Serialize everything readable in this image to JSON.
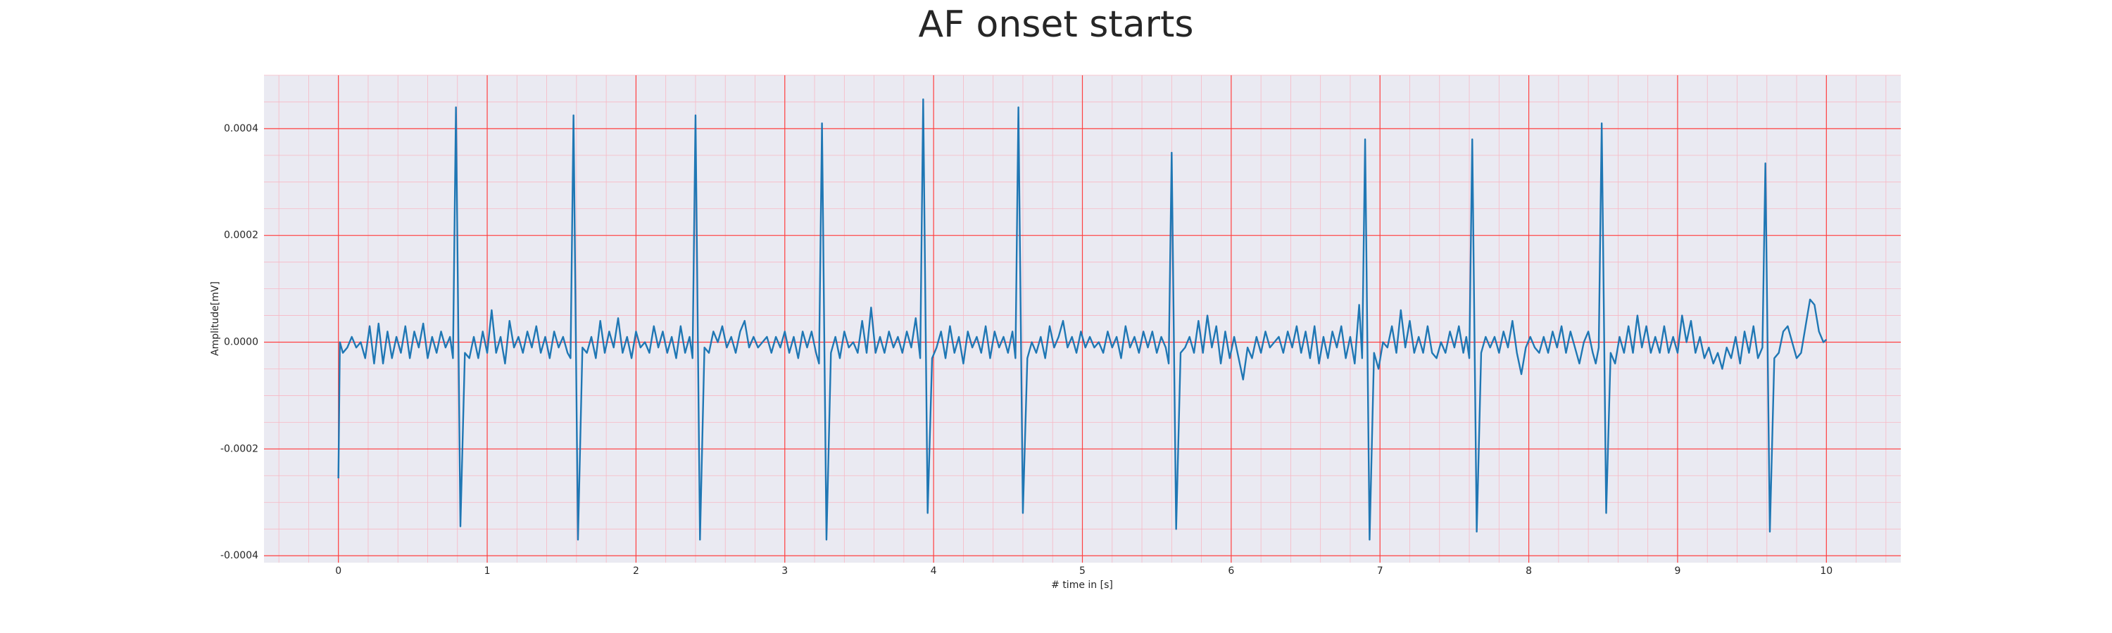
{
  "chart_data": {
    "type": "line",
    "title": "AF onset starts",
    "xlabel": "# time in [s]",
    "ylabel": "Amplitude[mV]",
    "xlim": [
      -0.5,
      10.5
    ],
    "ylim": [
      -0.000413,
      0.0005
    ],
    "xticks": [
      0,
      1,
      2,
      3,
      4,
      5,
      6,
      7,
      8,
      9,
      10
    ],
    "yticks": [
      -0.0004,
      -0.0002,
      {
        "value": 0,
        "label": "0.0000"
      },
      0.0002,
      0.0004
    ],
    "grid": true,
    "xminor_step": 0.2,
    "yminor_step": 5e-05,
    "background": "#eaeaf2",
    "grid_color": "#ff4040",
    "minor_grid_color": "#f7b8c4",
    "series": [
      {
        "color": "#1f77b4",
        "x": [
          0,
          0.01,
          0.03,
          0.06,
          0.09,
          0.12,
          0.15,
          0.18,
          0.21,
          0.24,
          0.27,
          0.3,
          0.33,
          0.36,
          0.39,
          0.42,
          0.45,
          0.48,
          0.51,
          0.54,
          0.57,
          0.6,
          0.63,
          0.66,
          0.69,
          0.72,
          0.75,
          0.77,
          0.79,
          0.82,
          0.85,
          0.88,
          0.91,
          0.94,
          0.97,
          1.0,
          1.03,
          1.06,
          1.09,
          1.12,
          1.15,
          1.18,
          1.21,
          1.24,
          1.27,
          1.3,
          1.33,
          1.36,
          1.39,
          1.42,
          1.45,
          1.48,
          1.51,
          1.54,
          1.56,
          1.58,
          1.61,
          1.64,
          1.67,
          1.7,
          1.73,
          1.76,
          1.79,
          1.82,
          1.85,
          1.88,
          1.91,
          1.94,
          1.97,
          2.0,
          2.03,
          2.06,
          2.09,
          2.12,
          2.15,
          2.18,
          2.21,
          2.24,
          2.27,
          2.3,
          2.33,
          2.36,
          2.38,
          2.4,
          2.43,
          2.46,
          2.49,
          2.52,
          2.55,
          2.58,
          2.61,
          2.64,
          2.67,
          2.7,
          2.73,
          2.76,
          2.79,
          2.82,
          2.85,
          2.88,
          2.91,
          2.94,
          2.97,
          3.0,
          3.03,
          3.06,
          3.09,
          3.12,
          3.15,
          3.18,
          3.21,
          3.23,
          3.25,
          3.28,
          3.31,
          3.34,
          3.37,
          3.4,
          3.43,
          3.46,
          3.49,
          3.52,
          3.55,
          3.58,
          3.61,
          3.64,
          3.67,
          3.7,
          3.73,
          3.76,
          3.79,
          3.82,
          3.85,
          3.88,
          3.91,
          3.93,
          3.96,
          3.99,
          4.02,
          4.05,
          4.08,
          4.11,
          4.14,
          4.17,
          4.2,
          4.23,
          4.26,
          4.29,
          4.32,
          4.35,
          4.38,
          4.41,
          4.44,
          4.47,
          4.5,
          4.53,
          4.55,
          4.57,
          4.6,
          4.63,
          4.66,
          4.69,
          4.72,
          4.75,
          4.78,
          4.81,
          4.84,
          4.87,
          4.9,
          4.93,
          4.96,
          4.99,
          5.02,
          5.05,
          5.08,
          5.11,
          5.14,
          5.17,
          5.2,
          5.23,
          5.26,
          5.29,
          5.32,
          5.35,
          5.38,
          5.41,
          5.44,
          5.47,
          5.5,
          5.53,
          5.56,
          5.58,
          5.6,
          5.63,
          5.66,
          5.69,
          5.72,
          5.75,
          5.78,
          5.81,
          5.84,
          5.87,
          5.9,
          5.93,
          5.96,
          5.99,
          6.02,
          6.05,
          6.08,
          6.11,
          6.14,
          6.17,
          6.2,
          6.23,
          6.26,
          6.29,
          6.32,
          6.35,
          6.38,
          6.41,
          6.44,
          6.47,
          6.5,
          6.53,
          6.56,
          6.59,
          6.62,
          6.65,
          6.68,
          6.71,
          6.74,
          6.77,
          6.8,
          6.83,
          6.86,
          6.88,
          6.9,
          6.93,
          6.96,
          6.99,
          7.02,
          7.05,
          7.08,
          7.11,
          7.14,
          7.17,
          7.2,
          7.23,
          7.26,
          7.29,
          7.32,
          7.35,
          7.38,
          7.41,
          7.44,
          7.47,
          7.5,
          7.53,
          7.56,
          7.58,
          7.6,
          7.62,
          7.65,
          7.68,
          7.71,
          7.74,
          7.77,
          7.8,
          7.83,
          7.86,
          7.89,
          7.92,
          7.95,
          7.98,
          8.01,
          8.04,
          8.07,
          8.1,
          8.13,
          8.16,
          8.19,
          8.22,
          8.25,
          8.28,
          8.31,
          8.34,
          8.37,
          8.4,
          8.43,
          8.45,
          8.47,
          8.49,
          8.52,
          8.55,
          8.58,
          8.61,
          8.64,
          8.67,
          8.7,
          8.73,
          8.76,
          8.79,
          8.82,
          8.85,
          8.88,
          8.91,
          8.94,
          8.97,
          9.0,
          9.03,
          9.06,
          9.09,
          9.12,
          9.15,
          9.18,
          9.21,
          9.24,
          9.27,
          9.3,
          9.33,
          9.36,
          9.39,
          9.42,
          9.45,
          9.48,
          9.51,
          9.54,
          9.57,
          9.59,
          9.62,
          9.65,
          9.68,
          9.71,
          9.74,
          9.77,
          9.8,
          9.83,
          9.86,
          9.89,
          9.92,
          9.95,
          9.98,
          10.0
        ],
        "values": [
          -0.000255,
          0,
          -2e-05,
          -1e-05,
          1e-05,
          -1e-05,
          0,
          -3e-05,
          3e-05,
          -4e-05,
          3.5e-05,
          -4e-05,
          2e-05,
          -3e-05,
          1e-05,
          -2e-05,
          3e-05,
          -3e-05,
          2e-05,
          -1e-05,
          3.5e-05,
          -3e-05,
          1e-05,
          -2e-05,
          2e-05,
          -1e-05,
          1e-05,
          -3e-05,
          0.00044,
          -0.000345,
          -2e-05,
          -3e-05,
          1e-05,
          -3e-05,
          2e-05,
          -2e-05,
          6e-05,
          -2e-05,
          1e-05,
          -4e-05,
          4e-05,
          -1e-05,
          1e-05,
          -2e-05,
          2e-05,
          -1e-05,
          3e-05,
          -2e-05,
          1e-05,
          -3e-05,
          2e-05,
          -1e-05,
          1e-05,
          -2e-05,
          -3e-05,
          0.000425,
          -0.00037,
          -1e-05,
          -2e-05,
          1e-05,
          -3e-05,
          4e-05,
          -2e-05,
          2e-05,
          -1e-05,
          4.5e-05,
          -2e-05,
          1e-05,
          -3e-05,
          2e-05,
          -1e-05,
          0,
          -2e-05,
          3e-05,
          -1e-05,
          2e-05,
          -2e-05,
          1e-05,
          -3e-05,
          3e-05,
          -2e-05,
          1e-05,
          -3e-05,
          0.000425,
          -0.00037,
          -1e-05,
          -2e-05,
          2e-05,
          0,
          3e-05,
          -1e-05,
          1e-05,
          -2e-05,
          2e-05,
          4e-05,
          -1e-05,
          1e-05,
          -1e-05,
          0,
          1e-05,
          -2e-05,
          1e-05,
          -1e-05,
          2e-05,
          -2e-05,
          1e-05,
          -3e-05,
          2e-05,
          -1e-05,
          2e-05,
          -2e-05,
          -4e-05,
          0.00041,
          -0.00037,
          -2e-05,
          1e-05,
          -3e-05,
          2e-05,
          -1e-05,
          0,
          -2e-05,
          4e-05,
          -2e-05,
          6.5e-05,
          -2e-05,
          1e-05,
          -2e-05,
          2e-05,
          -1e-05,
          1e-05,
          -2e-05,
          2e-05,
          -1e-05,
          4.5e-05,
          -3e-05,
          0.000455,
          -0.00032,
          -3e-05,
          -1e-05,
          2e-05,
          -3e-05,
          3e-05,
          -2e-05,
          1e-05,
          -4e-05,
          2e-05,
          -1e-05,
          1e-05,
          -2e-05,
          3e-05,
          -3e-05,
          2e-05,
          -1e-05,
          1e-05,
          -2e-05,
          2e-05,
          -3e-05,
          0.00044,
          -0.00032,
          -3e-05,
          0,
          -2e-05,
          1e-05,
          -3e-05,
          3e-05,
          -1e-05,
          1e-05,
          4e-05,
          -1e-05,
          1e-05,
          -2e-05,
          2e-05,
          -1e-05,
          1e-05,
          -1e-05,
          0,
          -2e-05,
          2e-05,
          -1e-05,
          1e-05,
          -3e-05,
          3e-05,
          -1e-05,
          1e-05,
          -2e-05,
          2e-05,
          -1e-05,
          2e-05,
          -2e-05,
          1e-05,
          -1e-05,
          -4e-05,
          0.000355,
          -0.00035,
          -2e-05,
          -1e-05,
          1e-05,
          -2e-05,
          4e-05,
          -2e-05,
          5e-05,
          -1e-05,
          3e-05,
          -4e-05,
          2e-05,
          -3e-05,
          1e-05,
          -3e-05,
          -7e-05,
          -1e-05,
          -3e-05,
          1e-05,
          -2e-05,
          2e-05,
          -1e-05,
          0,
          1e-05,
          -2e-05,
          2e-05,
          -1e-05,
          3e-05,
          -2e-05,
          2e-05,
          -3e-05,
          3e-05,
          -4e-05,
          1e-05,
          -3e-05,
          2e-05,
          -1e-05,
          3e-05,
          -3e-05,
          1e-05,
          -4e-05,
          7e-05,
          -3e-05,
          0.00038,
          -0.00037,
          -2e-05,
          -5e-05,
          0,
          -1e-05,
          3e-05,
          -2e-05,
          6e-05,
          -1e-05,
          4e-05,
          -2e-05,
          1e-05,
          -2e-05,
          3e-05,
          -2e-05,
          -3e-05,
          0,
          -2e-05,
          2e-05,
          -1e-05,
          3e-05,
          -2e-05,
          1e-05,
          -3e-05,
          0.00038,
          -0.000355,
          -2e-05,
          1e-05,
          -1e-05,
          1e-05,
          -2e-05,
          2e-05,
          -1e-05,
          4e-05,
          -2e-05,
          -6e-05,
          -1e-05,
          1e-05,
          -1e-05,
          -2e-05,
          1e-05,
          -2e-05,
          2e-05,
          -1e-05,
          3e-05,
          -2e-05,
          2e-05,
          -1e-05,
          -4e-05,
          0,
          2e-05,
          -2e-05,
          -4e-05,
          -1e-05,
          0.00041,
          -0.00032,
          -2e-05,
          -4e-05,
          1e-05,
          -2e-05,
          3e-05,
          -2e-05,
          5e-05,
          -1e-05,
          3e-05,
          -2e-05,
          1e-05,
          -2e-05,
          3e-05,
          -2e-05,
          1e-05,
          -2e-05,
          5e-05,
          0,
          4e-05,
          -2e-05,
          1e-05,
          -3e-05,
          -1e-05,
          -4e-05,
          -2e-05,
          -5e-05,
          -1e-05,
          -3e-05,
          1e-05,
          -4e-05,
          2e-05,
          -2e-05,
          3e-05,
          -3e-05,
          -1e-05,
          0.000335,
          -0.000355,
          -3e-05,
          -2e-05,
          2e-05,
          3e-05,
          0,
          -3e-05,
          -2e-05,
          3e-05,
          8e-05,
          7e-05,
          2e-05,
          0,
          5e-06
        ]
      }
    ]
  }
}
